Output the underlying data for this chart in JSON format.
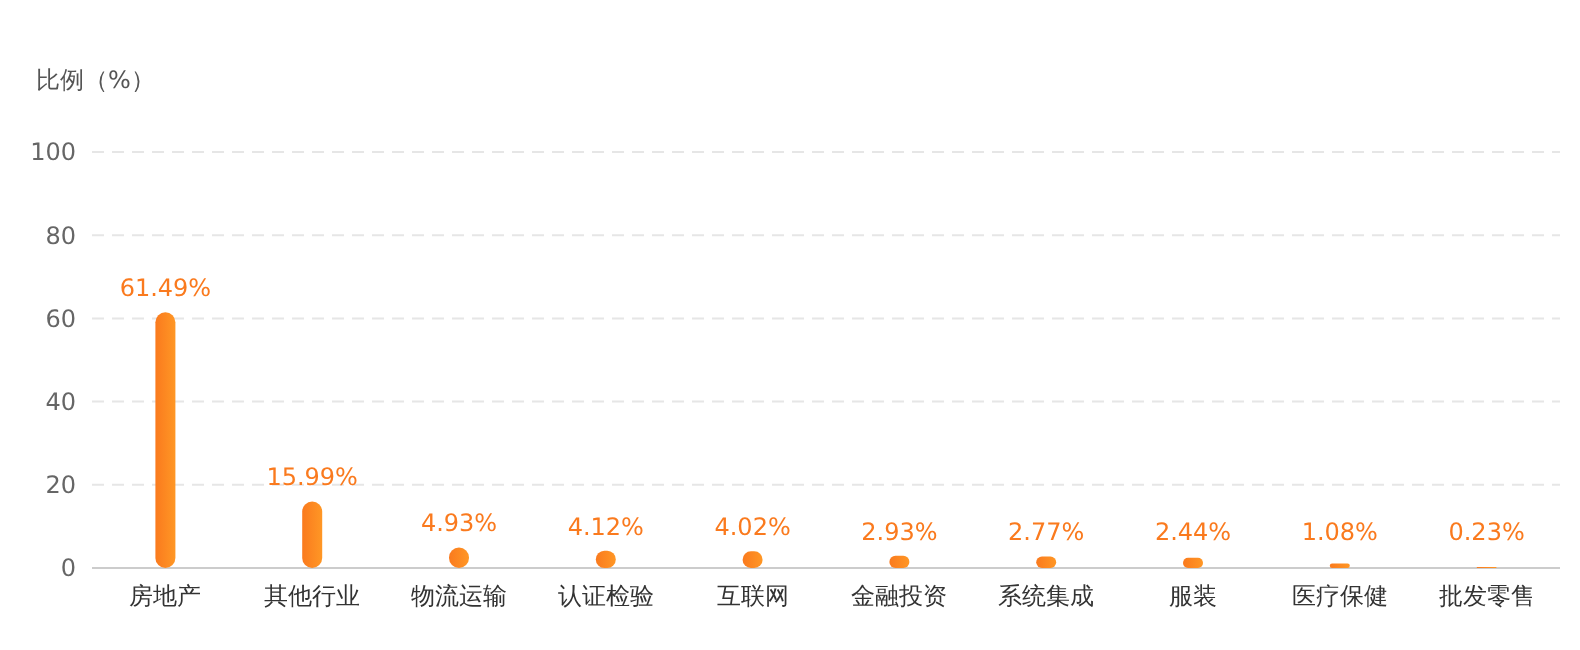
{
  "chart_data": {
    "type": "bar",
    "ylabel": "比例（%）",
    "categories": [
      "房地产",
      "其他行业",
      "物流运输",
      "认证检验",
      "互联网",
      "金融投资",
      "系统集成",
      "服装",
      "医疗保健",
      "批发零售"
    ],
    "values": [
      61.49,
      15.99,
      4.93,
      4.12,
      4.02,
      2.93,
      2.77,
      2.44,
      1.08,
      0.23
    ],
    "value_labels": [
      "61.49%",
      "15.99%",
      "4.93%",
      "4.12%",
      "4.02%",
      "2.93%",
      "2.77%",
      "2.44%",
      "1.08%",
      "0.23%"
    ],
    "color": "#fa7a1e",
    "ylim": [
      0,
      100
    ],
    "yticks": [
      0,
      20,
      40,
      60,
      80,
      100
    ],
    "grid": "y"
  }
}
